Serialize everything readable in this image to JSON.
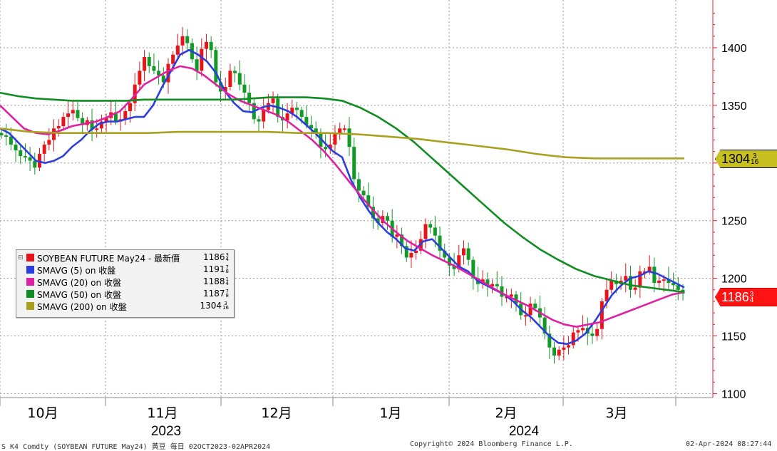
{
  "chart_data": {
    "type": "candlestick",
    "title": "SOYBEAN FUTURE May24",
    "ylim": [
      1100,
      1432
    ],
    "y_ticks": [
      1100,
      1150,
      1200,
      1250,
      1300,
      1350,
      1400
    ],
    "x_ticks": [
      {
        "label": "10月",
        "year": "2023",
        "date": "2023-10"
      },
      {
        "label": "11月",
        "year": "",
        "date": "2023-11"
      },
      {
        "label": "12月",
        "year": "",
        "date": "2023-12"
      },
      {
        "label": "1月",
        "year": "",
        "date": "2024-01"
      },
      {
        "label": "2月",
        "year": "2024",
        "date": "2024-02"
      },
      {
        "label": "3月",
        "year": "",
        "date": "2024-03"
      }
    ],
    "year_labels": [
      "2023",
      "2024"
    ],
    "grid": true,
    "legend_position": "bottom-left",
    "up_color": "#e8141a",
    "down_color": "#129a27",
    "close_points": [
      1324,
      1323,
      1316,
      1311,
      1306,
      1305,
      1302,
      1296,
      1308,
      1316,
      1320,
      1330,
      1332,
      1340,
      1343,
      1346,
      1339,
      1333,
      1337,
      1329,
      1330,
      1336,
      1339,
      1344,
      1336,
      1338,
      1345,
      1352,
      1368,
      1380,
      1392,
      1384,
      1380,
      1376,
      1370,
      1386,
      1394,
      1402,
      1410,
      1404,
      1390,
      1380,
      1399,
      1405,
      1398,
      1370,
      1362,
      1366,
      1380,
      1378,
      1368,
      1361,
      1352,
      1338,
      1336,
      1346,
      1352,
      1356,
      1340,
      1337,
      1343,
      1348,
      1346,
      1340,
      1333,
      1330,
      1326,
      1314,
      1312,
      1316,
      1326,
      1330,
      1330,
      1314,
      1286,
      1276,
      1272,
      1262,
      1252,
      1248,
      1254,
      1250,
      1236,
      1238,
      1228,
      1218,
      1222,
      1224,
      1234,
      1247,
      1244,
      1237,
      1224,
      1218,
      1211,
      1208,
      1220,
      1226,
      1216,
      1200,
      1195,
      1199,
      1193,
      1195,
      1193,
      1184,
      1184,
      1186,
      1178,
      1168,
      1168,
      1178,
      1174,
      1166,
      1152,
      1140,
      1133,
      1138,
      1140,
      1142,
      1153,
      1155,
      1157,
      1152,
      1150,
      1156,
      1180,
      1190,
      1198,
      1195,
      1198,
      1202,
      1190,
      1192,
      1206,
      1206,
      1210,
      1196,
      1198,
      1199,
      1196,
      1194,
      1190,
      1186.75
    ],
    "series": [
      {
        "name": "SOYBEAN FUTURE May24 - 最新價",
        "last": "1186",
        "last_frac": "3/4",
        "last_value": 1186.75,
        "color": "#e8141a"
      },
      {
        "name": "SMAVG (5)  on 收盤",
        "last": "1191",
        "last_frac": "7/8",
        "last_value": 1191.875,
        "color": "#2b3de0",
        "values": [
          1330,
          1326,
          1318,
          1310,
          1302,
          1300,
          1302,
          1306,
          1314,
          1320,
          1328,
          1334,
          1336,
          1336,
          1338,
          1340,
          1340,
          1350,
          1366,
          1380,
          1394,
          1398,
          1394,
          1388,
          1378,
          1362,
          1352,
          1345,
          1344,
          1348,
          1350,
          1348,
          1345,
          1340,
          1333,
          1326,
          1318,
          1310,
          1305,
          1285,
          1270,
          1258,
          1248,
          1240,
          1234,
          1226,
          1224,
          1232,
          1234,
          1226,
          1218,
          1210,
          1206,
          1198,
          1194,
          1190,
          1186,
          1180,
          1172,
          1166,
          1158,
          1150,
          1144,
          1143,
          1146,
          1152,
          1162,
          1174,
          1186,
          1194,
          1200,
          1202,
          1206,
          1204,
          1200,
          1196,
          1192
        ]
      },
      {
        "name": "SMAVG (20)  on 收盤",
        "last": "1188",
        "last_frac": "1/4",
        "last_value": 1188.25,
        "color": "#e020a2",
        "values": [
          1350,
          1340,
          1330,
          1326,
          1325,
          1328,
          1332,
          1334,
          1336,
          1340,
          1345,
          1356,
          1368,
          1374,
          1380,
          1384,
          1382,
          1376,
          1368,
          1360,
          1354,
          1350,
          1346,
          1342,
          1336,
          1328,
          1320,
          1310,
          1298,
          1285,
          1272,
          1260,
          1249,
          1240,
          1232,
          1226,
          1220,
          1215,
          1210,
          1204,
          1198,
          1192,
          1186,
          1181,
          1176,
          1170,
          1164,
          1160,
          1158,
          1160,
          1162,
          1166,
          1170,
          1174,
          1178,
          1182,
          1186,
          1188
        ]
      },
      {
        "name": "SMAVG (50)  on 收盤",
        "last": "1187",
        "last_frac": "7/8",
        "last_value": 1187.875,
        "color": "#118c23",
        "values": [
          1361,
          1358,
          1356,
          1355,
          1354,
          1354,
          1354,
          1354,
          1355,
          1355,
          1355,
          1355,
          1355,
          1355,
          1356,
          1357,
          1357,
          1357,
          1356,
          1354,
          1348,
          1340,
          1330,
          1318,
          1304,
          1290,
          1276,
          1262,
          1248,
          1236,
          1225,
          1216,
          1208,
          1202,
          1198,
          1194,
          1192,
          1190,
          1188
        ]
      },
      {
        "name": "SMAVG (200)  on 收盤",
        "last": "1304",
        "last_frac": "3/16",
        "last_value": 1304.1875,
        "color": "#a9a020",
        "values": [
          1330,
          1327,
          1326,
          1326,
          1326,
          1326,
          1327,
          1327,
          1327,
          1327,
          1326,
          1326,
          1325,
          1323,
          1321,
          1318,
          1315,
          1312,
          1308,
          1305,
          1304,
          1304,
          1304,
          1304
        ]
      }
    ]
  },
  "legend": {
    "rows": [
      {
        "label": "SOYBEAN FUTURE May24 - 最新價",
        "value": "1186",
        "frac": "3/4",
        "color": "#e8141a"
      },
      {
        "label": "SMAVG (5)  on 收盤",
        "value": "1191",
        "frac": "7/8",
        "color": "#2b3de0"
      },
      {
        "label": "SMAVG (20)  on 收盤",
        "value": "1188",
        "frac": "1/4",
        "color": "#e020a2"
      },
      {
        "label": "SMAVG (50)  on 收盤",
        "value": "1187",
        "frac": "7/8",
        "color": "#118c23"
      },
      {
        "label": "SMAVG (200)  on 收盤",
        "value": "1304",
        "frac": "3/16",
        "color": "#a9a020"
      }
    ]
  },
  "flags": [
    {
      "value": "1304",
      "frac": "3/16",
      "bg": "#c7c020",
      "fg": "#000000",
      "border": "#000000"
    },
    {
      "value": "1186",
      "frac": "3/4",
      "bg": "#ff1212",
      "fg": "#ffffff",
      "border": "#c00000"
    }
  ],
  "footer": {
    "left": "S K4 Comdty (SOYBEAN FUTURE   May24) 黃豆  每日 02OCT2023-02APR2024",
    "center": "Copyright© 2024 Bloomberg Finance L.P.",
    "right": "02-Apr-2024 08:27:44"
  }
}
